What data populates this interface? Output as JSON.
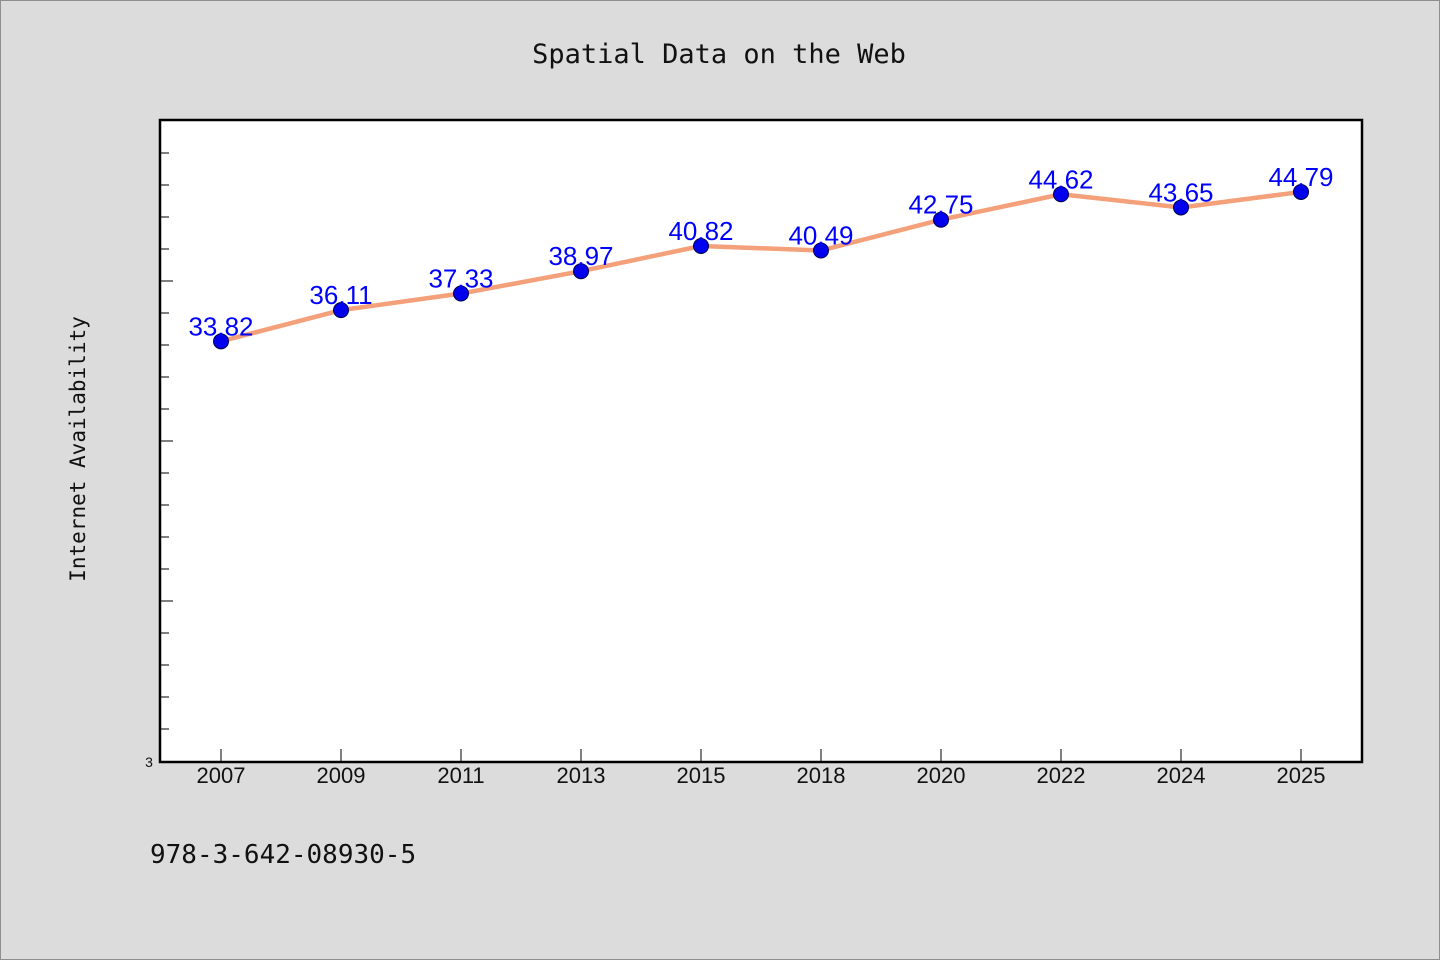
{
  "chart_data": {
    "type": "line",
    "title": "Spatial Data on the Web",
    "xlabel": "",
    "ylabel": "Internet Availability",
    "categories": [
      "2007",
      "2009",
      "2011",
      "2013",
      "2015",
      "2018",
      "2020",
      "2022",
      "2024",
      "2025"
    ],
    "series": [
      {
        "values": [
          33.82,
          36.11,
          37.33,
          38.97,
          40.82,
          40.49,
          42.75,
          44.62,
          43.65,
          44.79
        ]
      }
    ],
    "data_labels": [
      "33.82",
      "36.11",
      "37.33",
      "38.97",
      "40.82",
      "40.49",
      "42.75",
      "44.62",
      "43.65",
      "44.79"
    ],
    "ylim": [
      3,
      50
    ],
    "y_tick_labels": [
      "3"
    ],
    "grid": false,
    "legend": "none",
    "colors": {
      "line": "#f4a07a",
      "marker": "#0000ee",
      "label": "#0000ff",
      "plot_bg": "#ffffff",
      "page_bg": "#dcdcdc"
    }
  },
  "footer": {
    "code": "978-3-642-08930-5"
  }
}
